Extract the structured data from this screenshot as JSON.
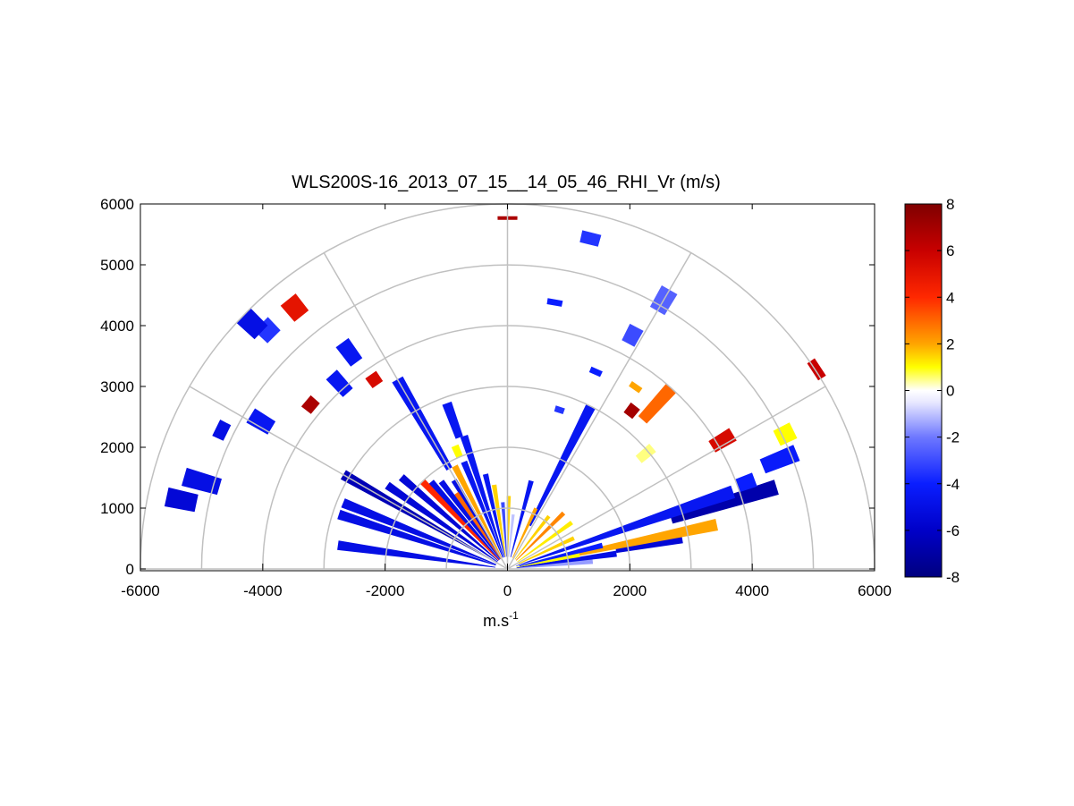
{
  "chart_data": {
    "type": "heatmap",
    "subtype": "polar-rhi-scan",
    "title": "WLS200S-16_2013_07_15__14_05_46_RHI_Vr (m/s)",
    "xlabel": "m.s",
    "xlabel_superscript": "-1",
    "ylabel": "",
    "xlim": [
      -6000,
      6000
    ],
    "ylim": [
      0,
      6000
    ],
    "x_ticks": [
      -6000,
      -4000,
      -2000,
      0,
      2000,
      4000,
      6000
    ],
    "x_tick_labels": [
      "-6000",
      "-4000",
      "-2000",
      "0",
      "2000",
      "4000",
      "6000"
    ],
    "y_ticks": [
      0,
      1000,
      2000,
      3000,
      4000,
      5000,
      6000
    ],
    "y_tick_labels": [
      "0",
      "1000",
      "2000",
      "3000",
      "4000",
      "5000",
      "6000"
    ],
    "polar_grid": {
      "range_rings_m": [
        1000,
        2000,
        3000,
        4000,
        5000,
        6000
      ],
      "radial_lines_deg": [
        0,
        30,
        60,
        90,
        120,
        150,
        180
      ]
    },
    "colorbar": {
      "min": -8,
      "max": 8,
      "ticks": [
        8,
        6,
        4,
        2,
        0,
        -2,
        -4,
        -6,
        -8
      ],
      "tick_labels": [
        "8",
        "6",
        "4",
        "2",
        "0",
        "-2",
        "-4",
        "-6",
        "-8"
      ],
      "colormap_stops": [
        {
          "value": -8,
          "color": "#00007f"
        },
        {
          "value": -6,
          "color": "#0000c8"
        },
        {
          "value": -4,
          "color": "#0a1eff"
        },
        {
          "value": -2,
          "color": "#6e78ff"
        },
        {
          "value": -0.5,
          "color": "#e8e8ff"
        },
        {
          "value": 0,
          "color": "#ffffff"
        },
        {
          "value": 0.5,
          "color": "#ffff80"
        },
        {
          "value": 1,
          "color": "#ffff00"
        },
        {
          "value": 2,
          "color": "#ffa500"
        },
        {
          "value": 4,
          "color": "#ff2800"
        },
        {
          "value": 6,
          "color": "#c80000"
        },
        {
          "value": 8,
          "color": "#7f0000"
        }
      ]
    },
    "gates": [
      {
        "az": 5,
        "r0": 150,
        "r1": 1400,
        "v": -1.5
      },
      {
        "az": 8,
        "r0": 150,
        "r1": 1800,
        "v": -5
      },
      {
        "az": 10,
        "r0": 1800,
        "r1": 2900,
        "v": -5.5
      },
      {
        "az": 11,
        "r0": 150,
        "r1": 1200,
        "v": 1
      },
      {
        "az": 12,
        "r0": 1200,
        "r1": 3500,
        "v": 2
      },
      {
        "az": 14,
        "r0": 200,
        "r1": 1600,
        "v": -4
      },
      {
        "az": 17,
        "r0": 2800,
        "r1": 4600,
        "v": -6.8
      },
      {
        "az": 19,
        "r0": 150,
        "r1": 3900,
        "v": -4.5
      },
      {
        "az": 20,
        "r0": 4000,
        "r1": 4300,
        "v": -4
      },
      {
        "az": 22,
        "r0": 4500,
        "r1": 5100,
        "v": -4.2
      },
      {
        "az": 25,
        "r0": 200,
        "r1": 1200,
        "v": 1.5
      },
      {
        "az": 26,
        "r0": 4900,
        "r1": 5200,
        "v": 1
      },
      {
        "az": 31,
        "r0": 3900,
        "r1": 4300,
        "v": 5.5
      },
      {
        "az": 33,
        "r0": 5950,
        "r1": 6100,
        "v": 6
      },
      {
        "az": 36,
        "r0": 200,
        "r1": 1300,
        "v": 1.2
      },
      {
        "az": 40,
        "r0": 2800,
        "r1": 3100,
        "v": 0.5
      },
      {
        "az": 45,
        "r0": 200,
        "r1": 1300,
        "v": 2.5
      },
      {
        "az": 48,
        "r0": 3300,
        "r1": 4000,
        "v": 3
      },
      {
        "az": 52,
        "r0": 3200,
        "r1": 3400,
        "v": 7
      },
      {
        "az": 52,
        "r0": 200,
        "r1": 1100,
        "v": 1.5
      },
      {
        "az": 55,
        "r0": 3600,
        "r1": 3700,
        "v": 2
      },
      {
        "az": 60,
        "r0": 4900,
        "r1": 5300,
        "v": -2.5
      },
      {
        "az": 62,
        "r0": 4200,
        "r1": 4500,
        "v": -3
      },
      {
        "az": 63,
        "r0": 800,
        "r1": 3000,
        "v": -4.5
      },
      {
        "az": 65,
        "r0": 200,
        "r1": 1100,
        "v": 2
      },
      {
        "az": 66,
        "r0": 3500,
        "r1": 3600,
        "v": -4
      },
      {
        "az": 72,
        "r0": 2700,
        "r1": 2800,
        "v": -3.5
      },
      {
        "az": 75,
        "r0": 200,
        "r1": 1500,
        "v": -4.5
      },
      {
        "az": 76,
        "r0": 5500,
        "r1": 5700,
        "v": -3.5
      },
      {
        "az": 80,
        "r0": 4400,
        "r1": 4500,
        "v": -4
      },
      {
        "az": 84,
        "r0": 200,
        "r1": 900,
        "v": -1
      },
      {
        "az": 89,
        "r0": 200,
        "r1": 1200,
        "v": 1.5
      },
      {
        "az": 90,
        "r0": 5740,
        "r1": 5800,
        "v": 6.8
      },
      {
        "az": 94,
        "r0": 200,
        "r1": 1100,
        "v": -3
      },
      {
        "az": 99,
        "r0": 200,
        "r1": 1400,
        "v": 1.5
      },
      {
        "az": 103,
        "r0": 200,
        "r1": 1600,
        "v": -4.5
      },
      {
        "az": 108,
        "r0": 200,
        "r1": 2300,
        "v": -4.5
      },
      {
        "az": 110,
        "r0": 2300,
        "r1": 2900,
        "v": -4.5
      },
      {
        "az": 112,
        "r0": 200,
        "r1": 1900,
        "v": -4.5
      },
      {
        "az": 113,
        "r0": 2000,
        "r1": 2200,
        "v": 1
      },
      {
        "az": 117,
        "r0": 200,
        "r1": 1900,
        "v": 2
      },
      {
        "az": 120,
        "r0": 1900,
        "r1": 3600,
        "v": -4.5
      },
      {
        "az": 121,
        "r0": 200,
        "r1": 1700,
        "v": -5
      },
      {
        "az": 124,
        "r0": 200,
        "r1": 1500,
        "v": 3
      },
      {
        "az": 125,
        "r0": 3700,
        "r1": 3900,
        "v": 5.5
      },
      {
        "az": 126,
        "r0": 4200,
        "r1": 4600,
        "v": -4.5
      },
      {
        "az": 127,
        "r0": 200,
        "r1": 1800,
        "v": -5
      },
      {
        "az": 129,
        "r0": 5350,
        "r1": 5700,
        "v": 5
      },
      {
        "az": 131,
        "r0": 200,
        "r1": 1900,
        "v": -5
      },
      {
        "az": 132,
        "r0": 3900,
        "r1": 4300,
        "v": -4.5
      },
      {
        "az": 134,
        "r0": 200,
        "r1": 2000,
        "v": 4
      },
      {
        "az": 135,
        "r0": 5400,
        "r1": 5700,
        "v": -3.5
      },
      {
        "az": 136,
        "r0": 5600,
        "r1": 6000,
        "v": -5
      },
      {
        "az": 139,
        "r0": 200,
        "r1": 2300,
        "v": -5.5
      },
      {
        "az": 140,
        "r0": 4100,
        "r1": 4300,
        "v": 6.8
      },
      {
        "az": 145,
        "r0": 200,
        "r1": 2400,
        "v": -5.5
      },
      {
        "az": 149,
        "r0": 4500,
        "r1": 4900,
        "v": -4.5
      },
      {
        "az": 150,
        "r0": 200,
        "r1": 3100,
        "v": -6.5
      },
      {
        "az": 154,
        "r0": 5100,
        "r1": 5300,
        "v": -5
      },
      {
        "az": 158,
        "r0": 200,
        "r1": 2900,
        "v": -5
      },
      {
        "az": 162,
        "r0": 200,
        "r1": 2900,
        "v": -5
      },
      {
        "az": 164,
        "r0": 4900,
        "r1": 5500,
        "v": -5
      },
      {
        "az": 168,
        "r0": 5200,
        "r1": 5700,
        "v": -5.5
      },
      {
        "az": 172,
        "r0": 200,
        "r1": 2800,
        "v": -5
      }
    ]
  }
}
